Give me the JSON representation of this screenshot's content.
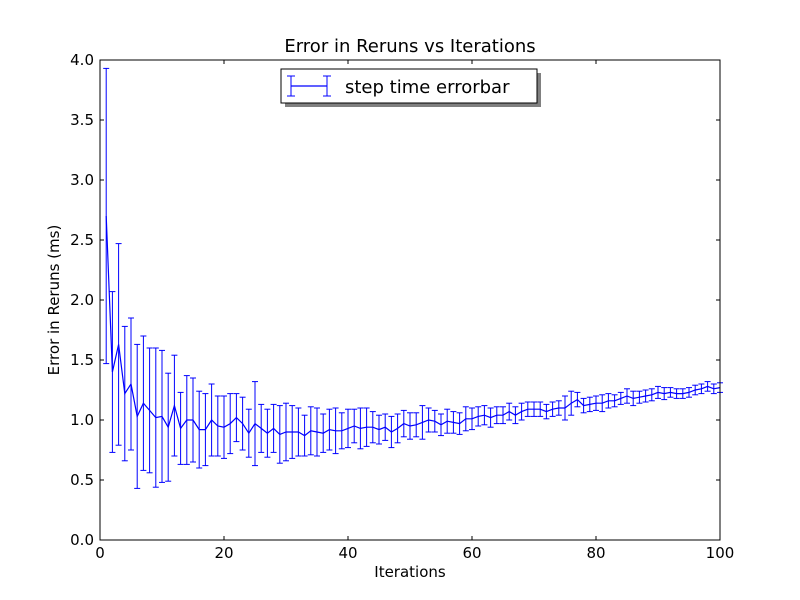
{
  "chart_data": {
    "type": "line",
    "title": "Error in Reruns vs Iterations",
    "xlabel": "Iterations",
    "ylabel": "Error in Reruns (ms)",
    "xlim": [
      0,
      100
    ],
    "ylim": [
      0.0,
      4.0
    ],
    "xticks": [
      "0",
      "20",
      "40",
      "60",
      "80",
      "100"
    ],
    "yticks": [
      "0.0",
      "0.5",
      "1.0",
      "1.5",
      "2.0",
      "2.5",
      "3.0",
      "3.5",
      "4.0"
    ],
    "grid": false,
    "legend_position": "upper center",
    "legend_shadow": true,
    "series": [
      {
        "name": "step time errorbar",
        "color": "#0000ff",
        "style": "errorbar-line",
        "x": [
          1,
          2,
          3,
          4,
          5,
          6,
          7,
          8,
          9,
          10,
          11,
          12,
          13,
          14,
          15,
          16,
          17,
          18,
          19,
          20,
          21,
          22,
          23,
          24,
          25,
          26,
          27,
          28,
          29,
          30,
          31,
          32,
          33,
          34,
          35,
          36,
          37,
          38,
          39,
          40,
          41,
          42,
          43,
          44,
          45,
          46,
          47,
          48,
          49,
          50,
          51,
          52,
          53,
          54,
          55,
          56,
          57,
          58,
          59,
          60,
          61,
          62,
          63,
          64,
          65,
          66,
          67,
          68,
          69,
          70,
          71,
          72,
          73,
          74,
          75,
          76,
          77,
          78,
          79,
          80,
          81,
          82,
          83,
          84,
          85,
          86,
          87,
          88,
          89,
          90,
          91,
          92,
          93,
          94,
          95,
          96,
          97,
          98,
          99,
          100
        ],
        "y": [
          2.7,
          1.4,
          1.63,
          1.22,
          1.3,
          1.03,
          1.14,
          1.08,
          1.02,
          1.03,
          0.94,
          1.12,
          0.93,
          1.0,
          1.0,
          0.92,
          0.92,
          1.0,
          0.95,
          0.94,
          0.97,
          1.02,
          0.97,
          0.89,
          0.97,
          0.93,
          0.89,
          0.93,
          0.88,
          0.9,
          0.9,
          0.9,
          0.87,
          0.91,
          0.9,
          0.89,
          0.92,
          0.91,
          0.91,
          0.93,
          0.95,
          0.93,
          0.94,
          0.94,
          0.92,
          0.94,
          0.9,
          0.93,
          0.97,
          0.95,
          0.96,
          0.98,
          1.0,
          0.99,
          0.96,
          0.99,
          0.98,
          0.97,
          1.01,
          1.01,
          1.03,
          1.04,
          1.02,
          1.04,
          1.04,
          1.07,
          1.04,
          1.07,
          1.09,
          1.09,
          1.09,
          1.07,
          1.09,
          1.1,
          1.1,
          1.14,
          1.17,
          1.12,
          1.13,
          1.14,
          1.14,
          1.16,
          1.16,
          1.18,
          1.2,
          1.18,
          1.19,
          1.2,
          1.21,
          1.23,
          1.22,
          1.23,
          1.22,
          1.22,
          1.23,
          1.25,
          1.26,
          1.28,
          1.26,
          1.27
        ],
        "yerr": [
          1.23,
          0.67,
          0.84,
          0.56,
          0.55,
          0.6,
          0.56,
          0.52,
          0.58,
          0.55,
          0.45,
          0.42,
          0.3,
          0.37,
          0.35,
          0.32,
          0.3,
          0.3,
          0.25,
          0.26,
          0.25,
          0.2,
          0.22,
          0.2,
          0.35,
          0.2,
          0.2,
          0.2,
          0.24,
          0.24,
          0.22,
          0.2,
          0.17,
          0.2,
          0.2,
          0.16,
          0.17,
          0.19,
          0.15,
          0.16,
          0.14,
          0.17,
          0.16,
          0.13,
          0.12,
          0.11,
          0.13,
          0.12,
          0.11,
          0.11,
          0.1,
          0.14,
          0.1,
          0.09,
          0.09,
          0.1,
          0.09,
          0.09,
          0.1,
          0.09,
          0.08,
          0.08,
          0.08,
          0.07,
          0.07,
          0.07,
          0.07,
          0.07,
          0.06,
          0.06,
          0.06,
          0.06,
          0.06,
          0.06,
          0.1,
          0.1,
          0.06,
          0.06,
          0.06,
          0.06,
          0.07,
          0.06,
          0.05,
          0.05,
          0.06,
          0.06,
          0.05,
          0.05,
          0.05,
          0.05,
          0.05,
          0.04,
          0.04,
          0.04,
          0.04,
          0.04,
          0.04,
          0.04,
          0.04,
          0.04
        ]
      }
    ]
  }
}
